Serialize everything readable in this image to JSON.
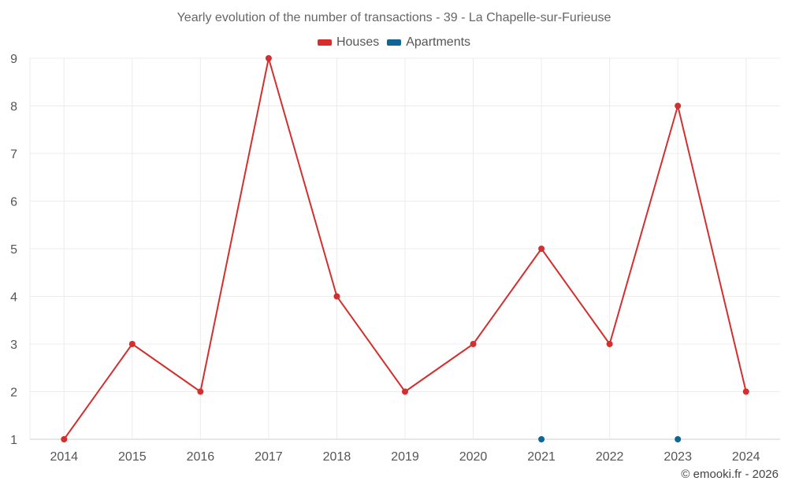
{
  "chart_data": {
    "type": "line",
    "title": "Yearly evolution of the number of transactions - 39 - La Chapelle-sur-Furieuse",
    "x": [
      "2014",
      "2015",
      "2016",
      "2017",
      "2018",
      "2019",
      "2020",
      "2021",
      "2022",
      "2023",
      "2024"
    ],
    "ylim": [
      1,
      9
    ],
    "yticks": [
      1,
      2,
      3,
      4,
      5,
      6,
      7,
      8,
      9
    ],
    "grid": true,
    "legend_position": "top",
    "series": [
      {
        "name": "Houses",
        "color": "#d32f2f",
        "line": true,
        "values": [
          1,
          3,
          2,
          9,
          4,
          2,
          3,
          5,
          3,
          8,
          2
        ]
      },
      {
        "name": "Apartments",
        "color": "#0d6696",
        "line": false,
        "values": [
          null,
          null,
          null,
          null,
          null,
          null,
          null,
          1,
          null,
          1,
          null
        ]
      }
    ]
  },
  "credit": "© emooki.fr - 2026"
}
